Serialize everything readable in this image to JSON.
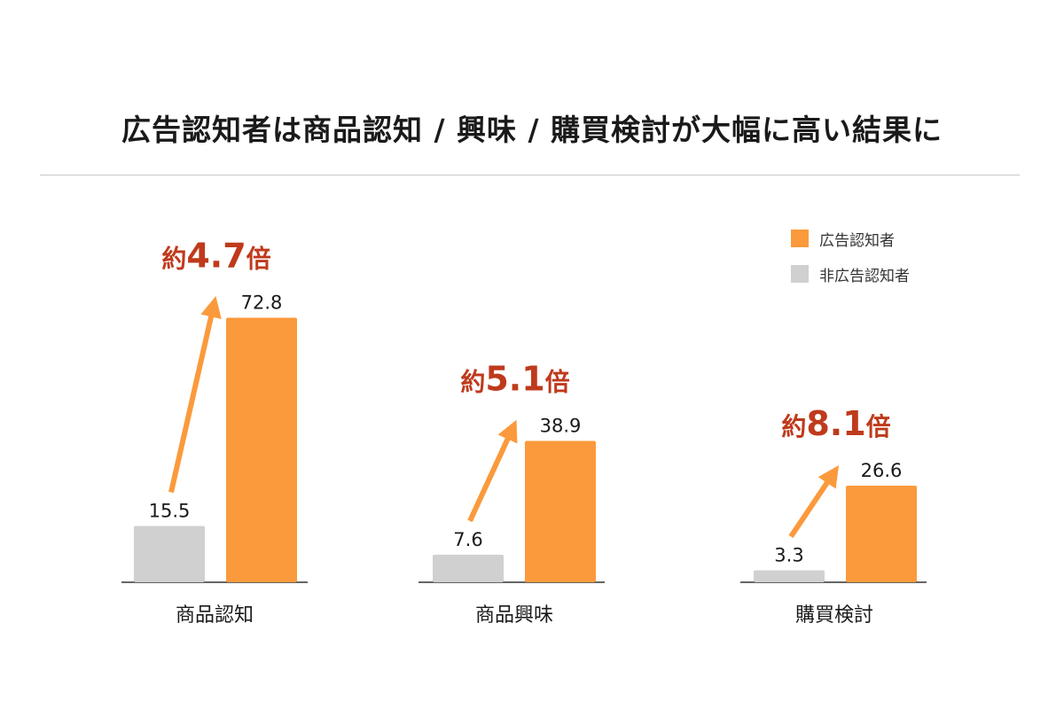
{
  "title": "広告認知者は商品認知 / 興味 / 購買検討が大幅に高い結果に",
  "legend": [
    {
      "label": "広告認知者",
      "color": "#fb9a3c"
    },
    {
      "label": "非広告認知者",
      "color": "#d0d0d0"
    }
  ],
  "chart_data": {
    "type": "bar",
    "title": "広告認知者は商品認知 / 興味 / 購買検討が大幅に高い結果に",
    "categories": [
      "商品認知",
      "商品興味",
      "購買検討"
    ],
    "series": [
      {
        "name": "非広告認知者",
        "values": [
          15.5,
          7.6,
          3.3
        ],
        "color": "#d0d0d0"
      },
      {
        "name": "広告認知者",
        "values": [
          72.8,
          38.9,
          26.6
        ],
        "color": "#fb9a3c"
      }
    ],
    "value_labels": {
      "non_aware": [
        "15.5",
        "7.6",
        "3.3"
      ],
      "aware": [
        "72.8",
        "38.9",
        "26.6"
      ]
    },
    "annotations": [
      {
        "prefix": "約",
        "value": "4.7",
        "suffix": "倍"
      },
      {
        "prefix": "約",
        "value": "5.1",
        "suffix": "倍"
      },
      {
        "prefix": "約",
        "value": "8.1",
        "suffix": "倍"
      }
    ],
    "annotation_color": "#bf3a1c",
    "arrow_color": "#fb9a3c",
    "legend_position": "top-right",
    "grid": false,
    "ylim": [
      0,
      80
    ]
  }
}
